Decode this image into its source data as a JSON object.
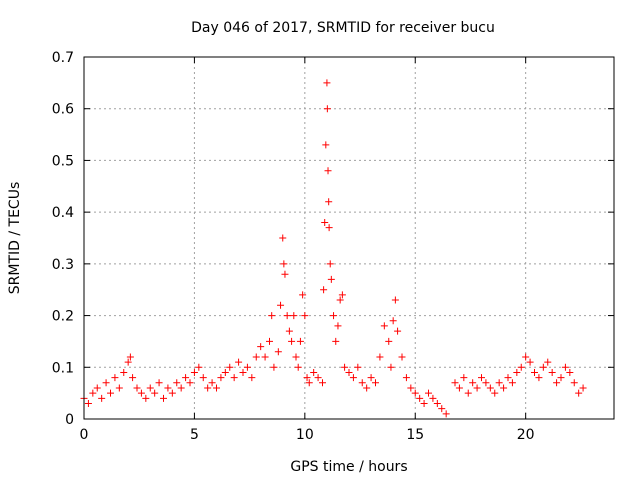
{
  "chart_data": {
    "type": "scatter",
    "title": "Day 046 of 2017, SRMTID for receiver bucu",
    "xlabel": "GPS time / hours",
    "ylabel": "SRMTID / TECUs",
    "xlim": [
      0,
      24
    ],
    "ylim": [
      0,
      0.7
    ],
    "x_ticks": [
      0,
      5,
      10,
      15,
      20
    ],
    "x_tick_labels": [
      "0",
      "5",
      "10",
      "15",
      "20"
    ],
    "y_ticks": [
      0,
      0.1,
      0.2,
      0.3,
      0.4,
      0.5,
      0.6,
      0.7
    ],
    "y_tick_labels": [
      "0",
      "0.1",
      "0.2",
      "0.3",
      "0.4",
      "0.5",
      "0.6",
      "0.7"
    ],
    "grid": true,
    "marker": "+",
    "series_color": "#ff0000",
    "series": [
      {
        "name": "SRMTID",
        "points": [
          [
            0.0,
            0.04
          ],
          [
            0.2,
            0.03
          ],
          [
            0.4,
            0.05
          ],
          [
            0.6,
            0.06
          ],
          [
            0.8,
            0.04
          ],
          [
            1.0,
            0.07
          ],
          [
            1.2,
            0.05
          ],
          [
            1.4,
            0.08
          ],
          [
            1.6,
            0.06
          ],
          [
            1.8,
            0.09
          ],
          [
            2.0,
            0.11
          ],
          [
            2.1,
            0.12
          ],
          [
            2.2,
            0.08
          ],
          [
            2.4,
            0.06
          ],
          [
            2.6,
            0.05
          ],
          [
            2.8,
            0.04
          ],
          [
            3.0,
            0.06
          ],
          [
            3.2,
            0.05
          ],
          [
            3.4,
            0.07
          ],
          [
            3.6,
            0.04
          ],
          [
            3.8,
            0.06
          ],
          [
            4.0,
            0.05
          ],
          [
            4.2,
            0.07
          ],
          [
            4.4,
            0.06
          ],
          [
            4.6,
            0.08
          ],
          [
            4.8,
            0.07
          ],
          [
            5.0,
            0.09
          ],
          [
            5.2,
            0.1
          ],
          [
            5.4,
            0.08
          ],
          [
            5.6,
            0.06
          ],
          [
            5.8,
            0.07
          ],
          [
            6.0,
            0.06
          ],
          [
            6.2,
            0.08
          ],
          [
            6.4,
            0.09
          ],
          [
            6.6,
            0.1
          ],
          [
            6.8,
            0.08
          ],
          [
            7.0,
            0.11
          ],
          [
            7.2,
            0.09
          ],
          [
            7.4,
            0.1
          ],
          [
            7.6,
            0.08
          ],
          [
            7.8,
            0.12
          ],
          [
            8.0,
            0.14
          ],
          [
            8.2,
            0.12
          ],
          [
            8.4,
            0.15
          ],
          [
            8.5,
            0.2
          ],
          [
            8.6,
            0.1
          ],
          [
            8.8,
            0.13
          ],
          [
            8.9,
            0.22
          ],
          [
            9.0,
            0.35
          ],
          [
            9.05,
            0.3
          ],
          [
            9.1,
            0.28
          ],
          [
            9.2,
            0.2
          ],
          [
            9.3,
            0.17
          ],
          [
            9.4,
            0.15
          ],
          [
            9.5,
            0.2
          ],
          [
            9.6,
            0.12
          ],
          [
            9.7,
            0.1
          ],
          [
            9.8,
            0.15
          ],
          [
            9.9,
            0.24
          ],
          [
            10.0,
            0.2
          ],
          [
            10.1,
            0.08
          ],
          [
            10.2,
            0.07
          ],
          [
            10.4,
            0.09
          ],
          [
            10.6,
            0.08
          ],
          [
            10.8,
            0.07
          ],
          [
            10.85,
            0.25
          ],
          [
            10.9,
            0.38
          ],
          [
            10.95,
            0.53
          ],
          [
            11.0,
            0.65
          ],
          [
            11.02,
            0.6
          ],
          [
            11.05,
            0.48
          ],
          [
            11.08,
            0.42
          ],
          [
            11.1,
            0.37
          ],
          [
            11.15,
            0.3
          ],
          [
            11.2,
            0.27
          ],
          [
            11.3,
            0.2
          ],
          [
            11.4,
            0.15
          ],
          [
            11.5,
            0.18
          ],
          [
            11.6,
            0.23
          ],
          [
            11.7,
            0.24
          ],
          [
            11.8,
            0.1
          ],
          [
            12.0,
            0.09
          ],
          [
            12.2,
            0.08
          ],
          [
            12.4,
            0.1
          ],
          [
            12.6,
            0.07
          ],
          [
            12.8,
            0.06
          ],
          [
            13.0,
            0.08
          ],
          [
            13.2,
            0.07
          ],
          [
            13.4,
            0.12
          ],
          [
            13.6,
            0.18
          ],
          [
            13.8,
            0.15
          ],
          [
            13.9,
            0.1
          ],
          [
            14.0,
            0.19
          ],
          [
            14.1,
            0.23
          ],
          [
            14.2,
            0.17
          ],
          [
            14.4,
            0.12
          ],
          [
            14.6,
            0.08
          ],
          [
            14.8,
            0.06
          ],
          [
            15.0,
            0.05
          ],
          [
            15.2,
            0.04
          ],
          [
            15.4,
            0.03
          ],
          [
            15.6,
            0.05
          ],
          [
            15.8,
            0.04
          ],
          [
            16.0,
            0.03
          ],
          [
            16.2,
            0.02
          ],
          [
            16.4,
            0.01
          ],
          [
            16.8,
            0.07
          ],
          [
            17.0,
            0.06
          ],
          [
            17.2,
            0.08
          ],
          [
            17.4,
            0.05
          ],
          [
            17.6,
            0.07
          ],
          [
            17.8,
            0.06
          ],
          [
            18.0,
            0.08
          ],
          [
            18.2,
            0.07
          ],
          [
            18.4,
            0.06
          ],
          [
            18.6,
            0.05
          ],
          [
            18.8,
            0.07
          ],
          [
            19.0,
            0.06
          ],
          [
            19.2,
            0.08
          ],
          [
            19.4,
            0.07
          ],
          [
            19.6,
            0.09
          ],
          [
            19.8,
            0.1
          ],
          [
            20.0,
            0.12
          ],
          [
            20.2,
            0.11
          ],
          [
            20.4,
            0.09
          ],
          [
            20.6,
            0.08
          ],
          [
            20.8,
            0.1
          ],
          [
            21.0,
            0.11
          ],
          [
            21.2,
            0.09
          ],
          [
            21.4,
            0.07
          ],
          [
            21.6,
            0.08
          ],
          [
            21.8,
            0.1
          ],
          [
            22.0,
            0.09
          ],
          [
            22.2,
            0.07
          ],
          [
            22.4,
            0.05
          ],
          [
            22.6,
            0.06
          ]
        ]
      }
    ]
  }
}
